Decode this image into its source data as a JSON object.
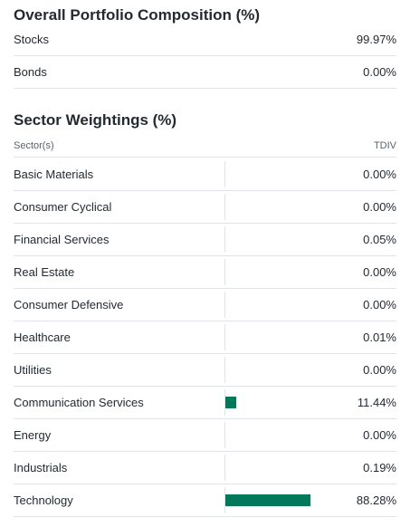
{
  "composition": {
    "title": "Overall Portfolio Composition (%)",
    "rows": [
      {
        "label": "Stocks",
        "value": "99.97%"
      },
      {
        "label": "Bonds",
        "value": "0.00%"
      }
    ]
  },
  "sectors": {
    "title": "Sector Weightings (%)",
    "col_label": "Sector(s)",
    "col_fund": "TDIV",
    "bar_color": "#00785a",
    "rows": [
      {
        "label": "Basic Materials",
        "value": "0.00%",
        "pct": 0.0
      },
      {
        "label": "Consumer Cyclical",
        "value": "0.00%",
        "pct": 0.0
      },
      {
        "label": "Financial Services",
        "value": "0.05%",
        "pct": 0.05
      },
      {
        "label": "Real Estate",
        "value": "0.00%",
        "pct": 0.0
      },
      {
        "label": "Consumer Defensive",
        "value": "0.00%",
        "pct": 0.0
      },
      {
        "label": "Healthcare",
        "value": "0.01%",
        "pct": 0.01
      },
      {
        "label": "Utilities",
        "value": "0.00%",
        "pct": 0.0
      },
      {
        "label": "Communication Services",
        "value": "11.44%",
        "pct": 11.44
      },
      {
        "label": "Energy",
        "value": "0.00%",
        "pct": 0.0
      },
      {
        "label": "Industrials",
        "value": "0.19%",
        "pct": 0.19
      },
      {
        "label": "Technology",
        "value": "88.28%",
        "pct": 88.28
      }
    ]
  }
}
